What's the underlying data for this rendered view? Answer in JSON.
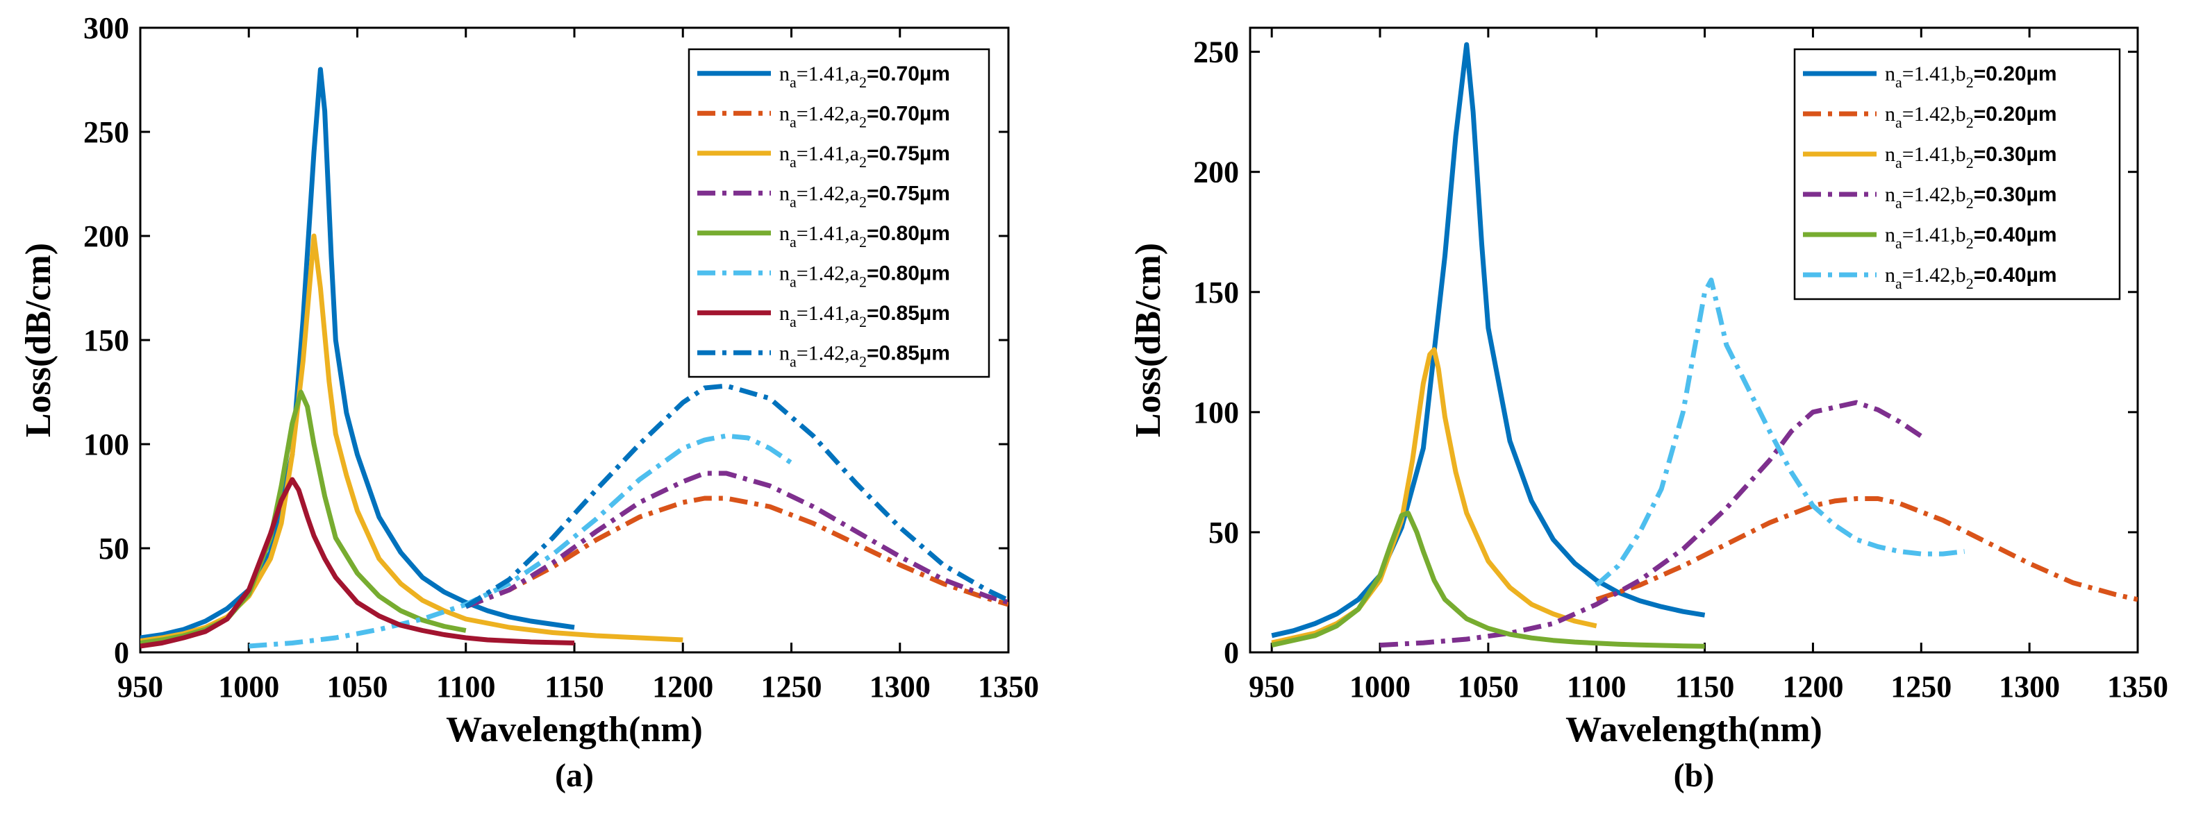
{
  "chart_data": [
    {
      "type": "line",
      "panel_label": "(a)",
      "xlabel": "Wavelength(nm)",
      "ylabel": "Loss(dB/cm)",
      "xlim": [
        950,
        1350
      ],
      "ylim": [
        0,
        300
      ],
      "xticks": [
        "950",
        "1000",
        "1050",
        "1100",
        "1150",
        "1200",
        "1250",
        "1300",
        "1350"
      ],
      "yticks": [
        "0",
        "50",
        "100",
        "150",
        "200",
        "250",
        "300"
      ],
      "legend_position": "top-right",
      "series": [
        {
          "name": "na=1.41,a2=0.70µm",
          "label_parts": [
            "n",
            "a",
            "=1.41,a",
            "2",
            "=0.70µm"
          ],
          "color": "#0072BD",
          "style": "solid",
          "x": [
            950,
            960,
            970,
            980,
            990,
            1000,
            1010,
            1020,
            1025,
            1030,
            1033,
            1035,
            1038,
            1040,
            1045,
            1050,
            1060,
            1070,
            1080,
            1090,
            1100,
            1110,
            1120,
            1130,
            1140,
            1150
          ],
          "y": [
            7,
            8.5,
            11,
            15,
            21,
            30,
            48,
            95,
            160,
            240,
            280,
            260,
            190,
            150,
            115,
            95,
            65,
            48,
            36,
            29,
            24,
            20,
            17,
            15,
            13.5,
            12
          ]
        },
        {
          "name": "na=1.42,a2=0.70µm",
          "label_parts": [
            "n",
            "a",
            "=1.42,a",
            "2",
            "=0.70µm"
          ],
          "color": "#D95319",
          "style": "dashdot",
          "x": [
            1100,
            1120,
            1140,
            1160,
            1180,
            1200,
            1210,
            1220,
            1240,
            1260,
            1280,
            1300,
            1320,
            1340,
            1350
          ],
          "y": [
            22,
            30,
            41,
            54,
            65,
            72,
            74,
            74,
            70,
            62,
            52,
            42,
            33,
            26,
            23
          ]
        },
        {
          "name": "na=1.41,a2=0.75µm",
          "label_parts": [
            "n",
            "a",
            "=1.41,a",
            "2",
            "=0.75µm"
          ],
          "color": "#EDB120",
          "style": "solid",
          "x": [
            950,
            960,
            970,
            980,
            990,
            1000,
            1010,
            1015,
            1020,
            1025,
            1030,
            1033,
            1037,
            1040,
            1045,
            1050,
            1060,
            1070,
            1080,
            1090,
            1100,
            1120,
            1140,
            1160,
            1180,
            1200
          ],
          "y": [
            5.5,
            7,
            9,
            12,
            17,
            27,
            45,
            62,
            95,
            140,
            200,
            175,
            130,
            105,
            85,
            68,
            45,
            33,
            25,
            20,
            16,
            12,
            9.5,
            8,
            7,
            6
          ]
        },
        {
          "name": "na=1.42,a2=0.75µm",
          "label_parts": [
            "n",
            "a",
            "=1.42,a",
            "2",
            "=0.75µm"
          ],
          "color": "#7E2F8E",
          "style": "dashdot",
          "x": [
            1100,
            1120,
            1140,
            1160,
            1180,
            1200,
            1210,
            1220,
            1240,
            1260,
            1280,
            1300,
            1320,
            1340,
            1350
          ],
          "y": [
            22,
            30,
            43,
            58,
            72,
            82,
            86,
            86,
            80,
            70,
            58,
            46,
            35,
            27,
            24
          ]
        },
        {
          "name": "na=1.41,a2=0.80µm",
          "label_parts": [
            "n",
            "a",
            "=1.41,a",
            "2",
            "=0.80µm"
          ],
          "color": "#77AC30",
          "style": "solid",
          "x": [
            950,
            960,
            970,
            980,
            990,
            1000,
            1010,
            1015,
            1020,
            1024,
            1027,
            1030,
            1035,
            1040,
            1050,
            1060,
            1070,
            1080,
            1090,
            1100
          ],
          "y": [
            4.5,
            6,
            8,
            11,
            16,
            28,
            55,
            80,
            110,
            125,
            118,
            100,
            75,
            55,
            38,
            27,
            20,
            15.5,
            12.5,
            10.5
          ]
        },
        {
          "name": "na=1.42,a2=0.80µm",
          "label_parts": [
            "n",
            "a",
            "=1.42,a",
            "2",
            "=0.80µm"
          ],
          "color": "#4DBEEE",
          "style": "dashdot",
          "x": [
            1000,
            1020,
            1040,
            1060,
            1080,
            1100,
            1120,
            1140,
            1160,
            1180,
            1200,
            1210,
            1220,
            1230,
            1240,
            1250
          ],
          "y": [
            3,
            4.5,
            7,
            11,
            16,
            23,
            33,
            47,
            64,
            83,
            98,
            102,
            104,
            103,
            98,
            91
          ]
        },
        {
          "name": "na=1.41,a2=0.85µm",
          "label_parts": [
            "n",
            "a",
            "=1.41,a",
            "2",
            "=0.85µm"
          ],
          "color": "#A2142F",
          "style": "solid",
          "x": [
            950,
            960,
            970,
            980,
            990,
            1000,
            1010,
            1015,
            1020,
            1023,
            1027,
            1030,
            1035,
            1040,
            1050,
            1060,
            1070,
            1080,
            1090,
            1100,
            1110,
            1120,
            1130,
            1150
          ],
          "y": [
            3,
            4.5,
            7,
            10,
            16,
            30,
            57,
            73,
            83,
            78,
            65,
            56,
            45,
            36,
            24,
            17.5,
            13,
            10.5,
            8.5,
            7,
            6,
            5.5,
            5,
            4.5
          ]
        },
        {
          "name": "na=1.42,a2=0.85µm",
          "label_parts": [
            "n",
            "a",
            "=1.42,a",
            "2",
            "=0.85µm"
          ],
          "color": "#0072BD",
          "style": "dashdot",
          "x": [
            1100,
            1120,
            1140,
            1160,
            1180,
            1200,
            1210,
            1220,
            1240,
            1260,
            1280,
            1300,
            1320,
            1340,
            1350
          ],
          "y": [
            22,
            35,
            55,
            78,
            100,
            120,
            127,
            128,
            122,
            104,
            81,
            60,
            42,
            30,
            25
          ]
        }
      ]
    },
    {
      "type": "line",
      "panel_label": "(b)",
      "xlabel": "Wavelength(nm)",
      "ylabel": "Loss(dB/cm)",
      "xlim": [
        940,
        1350
      ],
      "ylim": [
        0,
        260
      ],
      "xticks": [
        "950",
        "1000",
        "1050",
        "1100",
        "1150",
        "1200",
        "1250",
        "1300",
        "1350"
      ],
      "yticks": [
        "0",
        "50",
        "100",
        "150",
        "200",
        "250"
      ],
      "legend_position": "top-right",
      "series": [
        {
          "name": "na=1.41,b2=0.20µm",
          "label_parts": [
            "n",
            "a",
            "=1.41,b",
            "2",
            "=0.20µm"
          ],
          "color": "#0072BD",
          "style": "solid",
          "x": [
            950,
            960,
            970,
            980,
            990,
            1000,
            1010,
            1020,
            1030,
            1035,
            1040,
            1043,
            1047,
            1050,
            1060,
            1070,
            1080,
            1090,
            1100,
            1110,
            1120,
            1130,
            1140,
            1150
          ],
          "y": [
            7,
            9,
            12,
            16,
            22,
            32,
            52,
            85,
            165,
            215,
            253,
            225,
            170,
            135,
            88,
            63,
            47,
            37,
            30,
            25,
            21.5,
            19,
            17,
            15.5
          ]
        },
        {
          "name": "na=1.42,b2=0.20µm",
          "label_parts": [
            "n",
            "a",
            "=1.42,b",
            "2",
            "=0.20µm"
          ],
          "color": "#D95319",
          "style": "dashdot",
          "x": [
            1100,
            1120,
            1140,
            1160,
            1180,
            1200,
            1210,
            1220,
            1230,
            1240,
            1260,
            1280,
            1300,
            1320,
            1340,
            1350
          ],
          "y": [
            22,
            28,
            36,
            45,
            54,
            61,
            63,
            64,
            64,
            62,
            55,
            46,
            37,
            29,
            24,
            22
          ]
        },
        {
          "name": "na=1.41,b2=0.30µm",
          "label_parts": [
            "n",
            "a",
            "=1.41,b",
            "2",
            "=0.30µm"
          ],
          "color": "#EDB120",
          "style": "solid",
          "x": [
            950,
            960,
            970,
            980,
            990,
            1000,
            1010,
            1015,
            1020,
            1023,
            1025,
            1027,
            1030,
            1035,
            1040,
            1050,
            1060,
            1070,
            1080,
            1090,
            1100
          ],
          "y": [
            4,
            6,
            8,
            12,
            18,
            30,
            55,
            80,
            112,
            124,
            126,
            118,
            98,
            75,
            58,
            38,
            27,
            20,
            16,
            13,
            11
          ]
        },
        {
          "name": "na=1.42,b2=0.30µm",
          "label_parts": [
            "n",
            "a",
            "=1.42,b",
            "2",
            "=0.30µm"
          ],
          "color": "#7E2F8E",
          "style": "dashdot",
          "x": [
            1000,
            1020,
            1040,
            1060,
            1080,
            1100,
            1120,
            1140,
            1160,
            1180,
            1190,
            1200,
            1210,
            1220,
            1230,
            1240,
            1250
          ],
          "y": [
            3,
            4,
            5.5,
            8,
            12,
            20,
            30,
            43,
            60,
            80,
            92,
            100,
            102,
            104,
            101,
            96,
            90
          ]
        },
        {
          "name": "na=1.41,b2=0.40µm",
          "label_parts": [
            "n",
            "a",
            "=1.41,b",
            "2",
            "=0.40µm"
          ],
          "color": "#77AC30",
          "style": "solid",
          "x": [
            950,
            960,
            970,
            980,
            990,
            1000,
            1005,
            1010,
            1013,
            1017,
            1020,
            1025,
            1030,
            1040,
            1050,
            1060,
            1070,
            1080,
            1090,
            1100,
            1110,
            1120,
            1130,
            1140,
            1150
          ],
          "y": [
            3,
            5,
            7,
            11,
            18,
            32,
            45,
            57,
            58,
            50,
            42,
            30,
            22,
            14,
            10,
            7.5,
            6,
            5,
            4.3,
            3.8,
            3.4,
            3.1,
            2.9,
            2.7,
            2.5
          ]
        },
        {
          "name": "na=1.42,b2=0.40µm",
          "label_parts": [
            "n",
            "a",
            "=1.42,b",
            "2",
            "=0.40µm"
          ],
          "color": "#4DBEEE",
          "style": "dashdot",
          "x": [
            1100,
            1110,
            1120,
            1130,
            1140,
            1145,
            1150,
            1153,
            1157,
            1160,
            1170,
            1180,
            1190,
            1200,
            1210,
            1220,
            1230,
            1240,
            1250,
            1260,
            1270
          ],
          "y": [
            28,
            36,
            50,
            68,
            100,
            125,
            150,
            155,
            140,
            128,
            110,
            92,
            75,
            61,
            53,
            47,
            44,
            42,
            41,
            41,
            42
          ]
        }
      ]
    }
  ]
}
